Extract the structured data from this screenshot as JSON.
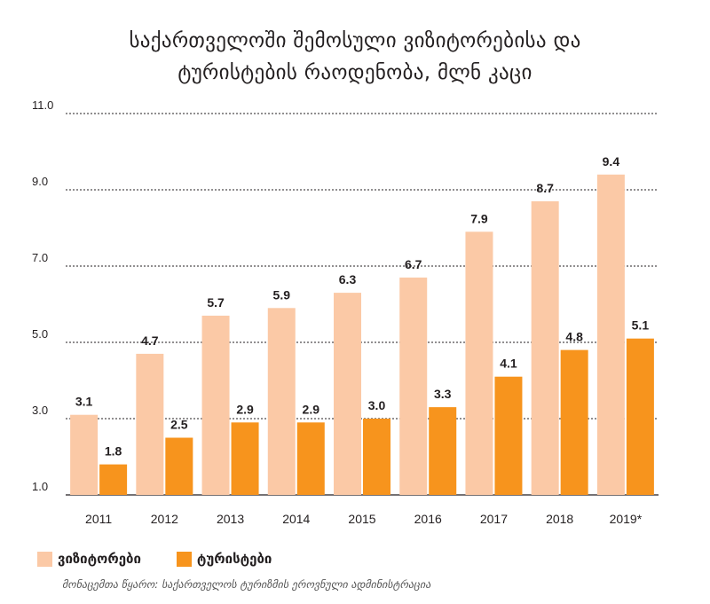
{
  "title": {
    "line1": "საქართველოში შემოსული ვიზიტორებისა და",
    "line2": "ტურისტების რაოდენობა, მლნ კაცი"
  },
  "colors": {
    "visitors": "#fbc9a6",
    "tourists": "#f7941d",
    "grid": "#231f20",
    "text": "#231f20"
  },
  "chart_data": {
    "type": "bar",
    "title": "საქართველოში შემოსული ვიზიტორებისა და ტურისტების რაოდენობა, მლნ კაცი",
    "categories": [
      "2011",
      "2012",
      "2013",
      "2014",
      "2015",
      "2016",
      "2017",
      "2018",
      "2019*"
    ],
    "series": [
      {
        "name": "ვიზიტორები",
        "values": [
          3.1,
          4.7,
          5.7,
          5.9,
          6.3,
          6.7,
          7.9,
          8.7,
          9.4
        ],
        "labels": [
          "3.1",
          "4.7",
          "5.7",
          "5.9",
          "6.3",
          "6.7",
          "7.9",
          "8.7",
          "9.4"
        ]
      },
      {
        "name": "ტურისტები",
        "values": [
          1.8,
          2.5,
          2.9,
          2.9,
          3.0,
          3.3,
          4.1,
          4.8,
          5.1
        ],
        "labels": [
          "1.8",
          "2.5",
          "2.9",
          "2.9",
          "3.0",
          "3.3",
          "4.1",
          "4.8",
          "5.1"
        ]
      }
    ],
    "yticks": [
      "1.0",
      "3.0",
      "5.0",
      "7.0",
      "9.0",
      "11.0"
    ],
    "ylim": [
      1.0,
      11.0
    ],
    "grid": true,
    "legend_position": "bottom-left",
    "xlabel": "",
    "ylabel": ""
  },
  "source": "მონაცემთა წყარო: საქართველოს ტურიზმის ეროვნული ადმინისტრაცია"
}
